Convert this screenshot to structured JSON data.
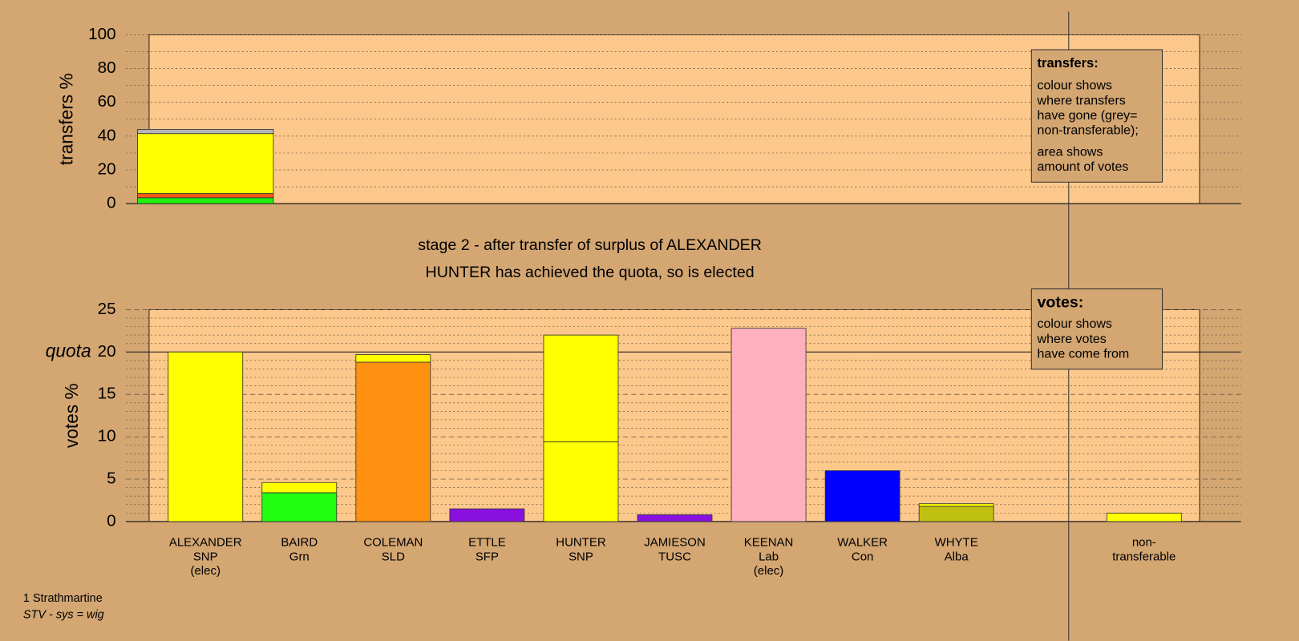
{
  "chart_data": [
    {
      "type": "stacked-bar",
      "ylabel": "transfers %",
      "ylim": [
        0,
        100
      ],
      "yticks": [
        0,
        20,
        40,
        60,
        80,
        100
      ],
      "segments": [
        {
          "color": "#22ee11",
          "value": 3.5
        },
        {
          "color": "#ff5a14",
          "value": 2.5
        },
        {
          "color": "#ffff00",
          "value": 35.5
        },
        {
          "color": "#b4b4b4",
          "value": 2.5
        }
      ]
    },
    {
      "type": "stacked-bar",
      "ylabel": "votes %",
      "ylim": [
        0,
        25
      ],
      "yticks": [
        0,
        5,
        10,
        15,
        20,
        25
      ],
      "quota": {
        "value": 20,
        "label": "quota"
      },
      "categories": [
        {
          "lines": [
            "ALEXANDER",
            "SNP",
            "(elec)"
          ],
          "segments": [
            {
              "color": "#ffff00",
              "value": 20.0
            }
          ]
        },
        {
          "lines": [
            "BAIRD",
            "Grn"
          ],
          "segments": [
            {
              "color": "#22ff11",
              "value": 3.4
            },
            {
              "color": "#ffff00",
              "value": 1.2
            }
          ]
        },
        {
          "lines": [
            "COLEMAN",
            "SLD"
          ],
          "segments": [
            {
              "color": "#ff9010",
              "value": 18.8
            },
            {
              "color": "#ffff00",
              "value": 0.9
            }
          ]
        },
        {
          "lines": [
            "ETTLE",
            "SFP"
          ],
          "segments": [
            {
              "color": "#8a10e0",
              "value": 1.5
            }
          ]
        },
        {
          "lines": [
            "HUNTER",
            "SNP"
          ],
          "segments": [
            {
              "color": "#ffff00",
              "value": 9.4
            },
            {
              "color": "#ffff00",
              "value": 12.6
            }
          ]
        },
        {
          "lines": [
            "JAMIESON",
            "TUSC"
          ],
          "segments": [
            {
              "color": "#8a10e0",
              "value": 0.8
            }
          ]
        },
        {
          "lines": [
            "KEENAN",
            "Lab",
            "(elec)"
          ],
          "segments": [
            {
              "color": "#ffb0c0",
              "value": 22.8
            }
          ]
        },
        {
          "lines": [
            "WALKER",
            "Con"
          ],
          "segments": [
            {
              "color": "#0000ff",
              "value": 6.0
            }
          ]
        },
        {
          "lines": [
            "WHYTE",
            "Alba"
          ],
          "segments": [
            {
              "color": "#c0c010",
              "value": 1.8
            },
            {
              "color": "#ffff00",
              "value": 0.3
            }
          ]
        },
        {
          "lines": [
            "non-",
            "transferable"
          ],
          "segments": [
            {
              "color": "#ffff00",
              "value": 1.0
            }
          ]
        }
      ]
    }
  ],
  "title": [
    "stage 2 - after transfer of surplus of ALEXANDER",
    "HUNTER has achieved the quota, so is elected"
  ],
  "legends": {
    "transfers": {
      "title": "transfers:",
      "paragraphs": [
        [
          "colour shows",
          "where transfers",
          "have gone (grey=",
          "non-transferable);"
        ],
        [
          "area shows",
          "amount of votes"
        ]
      ]
    },
    "votes": {
      "title": "votes:",
      "paragraphs": [
        [
          "colour shows",
          "where votes",
          "have come from"
        ]
      ]
    }
  },
  "footer": [
    "1 Strathmartine",
    "STV - sys = wig"
  ]
}
